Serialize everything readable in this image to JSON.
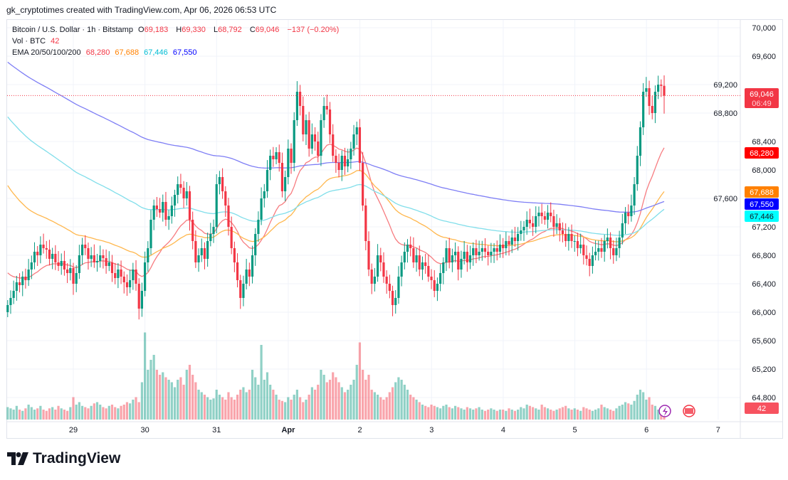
{
  "credit": "gk_cryptotimes created with TradingView.com, Apr 06, 2026 06:53 UTC",
  "legend": {
    "symbol": "Bitcoin / U.S. Dollar · 1h · Bitstamp",
    "o_label": "O",
    "o": "69,183",
    "h_label": "H",
    "h": "69,330",
    "l_label": "L",
    "l": "68,792",
    "c_label": "C",
    "c": "69,046",
    "change": "−137 (−0.20%)",
    "vol_label": "Vol · BTC",
    "vol": "42",
    "ema_label": "EMA 20/50/100/200",
    "ema20": "68,280",
    "ema50": "67,688",
    "ema100": "67,446",
    "ema200": "67,550"
  },
  "badges": {
    "price": "69,046",
    "countdown": "06:49",
    "ema20": "68,280",
    "ema50": "67,688",
    "ema200": "67,550",
    "ema100": "67,446",
    "volume": "42"
  },
  "colors": {
    "up": "#089981",
    "down": "#f23645",
    "ema20": "#ff0000",
    "ema50": "#ff8000",
    "ema100": "#00ffff",
    "ema200": "#0000ff"
  },
  "logo": "TradingView",
  "chart_data": {
    "type": "candlestick",
    "interval": "1h",
    "start": "Mar 28 02:00",
    "ylim": [
      64600,
      70100
    ],
    "y_ticks": [
      "70,000",
      "69,600",
      "69,200",
      "68,800",
      "68,400",
      "68,000",
      "67,600",
      "67,200",
      "66,800",
      "66,400",
      "66,000",
      "65,600",
      "65,200",
      "64,800"
    ],
    "x_ticks": [
      "29",
      "30",
      "31",
      "Apr",
      "2",
      "3",
      "4",
      "5",
      "6",
      "7"
    ],
    "last_candle": {
      "open": 69183,
      "high": 69330,
      "low": 68792,
      "close": 69046
    },
    "closes": [
      66100,
      66200,
      66300,
      66420,
      66380,
      66500,
      66450,
      66600,
      66700,
      66850,
      66800,
      66950,
      66900,
      66880,
      66750,
      66820,
      66700,
      66650,
      66720,
      66600,
      66550,
      66620,
      66400,
      66550,
      66800,
      66950,
      66900,
      66750,
      66800,
      66700,
      66720,
      66800,
      66760,
      66650,
      66700,
      66550,
      66480,
      66600,
      66500,
      66420,
      66350,
      66450,
      66600,
      66400,
      66050,
      66300,
      66700,
      66900,
      67300,
      67500,
      67450,
      67400,
      67550,
      67300,
      67350,
      67500,
      67650,
      67800,
      67750,
      67600,
      67700,
      67300,
      67000,
      66700,
      66800,
      66900,
      66750,
      67000,
      67100,
      67200,
      67800,
      67900,
      67700,
      67500,
      67200,
      66900,
      66700,
      66450,
      66200,
      66400,
      66600,
      66500,
      66800,
      67100,
      67300,
      67600,
      67700,
      68000,
      68200,
      68150,
      68250,
      68100,
      67700,
      67900,
      68300,
      68100,
      68700,
      69100,
      68900,
      68500,
      68700,
      68300,
      68500,
      68400,
      68200,
      68700,
      68900,
      68850,
      68500,
      68200,
      68100,
      68000,
      68200,
      68050,
      68150,
      68300,
      68500,
      68600,
      68100,
      67500,
      67000,
      66600,
      66400,
      66500,
      66800,
      66700,
      66500,
      66400,
      66300,
      66100,
      66200,
      66500,
      66700,
      66850,
      66950,
      66900,
      66700,
      66800,
      66600,
      66700,
      66650,
      66500,
      66450,
      66300,
      66400,
      66550,
      66700,
      66900,
      66700,
      66800,
      66850,
      66600,
      66750,
      66850,
      66700,
      66800,
      66900,
      66800,
      66850,
      66900,
      66850,
      66800,
      66850,
      66900,
      66850,
      66950,
      66900,
      67000,
      66950,
      67050,
      67000,
      67100,
      67150,
      67200,
      67300,
      67250,
      67200,
      67350,
      67400,
      67350,
      67300,
      67400,
      67350,
      67200,
      67250,
      67150,
      67100,
      67000,
      67100,
      67000,
      67000,
      66900,
      66950,
      66800,
      66750,
      66650,
      66800,
      66850,
      66900,
      66850,
      67000,
      67050,
      66900,
      66800,
      66900,
      67050,
      67250,
      67400,
      67350,
      67500,
      67800,
      68200,
      68600,
      69100,
      69150,
      68900,
      68800,
      69100,
      69200,
      69183,
      69046
    ],
    "volumes": [
      50,
      45,
      40,
      55,
      40,
      35,
      45,
      60,
      50,
      40,
      45,
      55,
      40,
      35,
      45,
      50,
      40,
      55,
      45,
      40,
      35,
      50,
      90,
      60,
      70,
      55,
      50,
      45,
      55,
      65,
      70,
      60,
      50,
      45,
      55,
      60,
      50,
      45,
      55,
      60,
      70,
      65,
      80,
      90,
      70,
      150,
      350,
      200,
      240,
      260,
      200,
      180,
      190,
      170,
      160,
      150,
      130,
      160,
      170,
      140,
      200,
      220,
      180,
      150,
      120,
      110,
      100,
      90,
      80,
      85,
      120,
      100,
      90,
      80,
      110,
      90,
      80,
      100,
      120,
      130,
      110,
      120,
      200,
      170,
      140,
      300,
      160,
      190,
      140,
      120,
      100,
      80,
      75,
      70,
      90,
      80,
      100,
      120,
      90,
      70,
      80,
      100,
      130,
      120,
      140,
      200,
      180,
      150,
      160,
      190,
      170,
      150,
      130,
      110,
      120,
      140,
      160,
      220,
      310,
      200,
      160,
      180,
      120,
      110,
      100,
      90,
      80,
      90,
      110,
      130,
      150,
      170,
      160,
      140,
      120,
      100,
      90,
      80,
      70,
      60,
      55,
      50,
      60,
      55,
      50,
      45,
      55,
      60,
      50,
      45,
      55,
      50,
      45,
      40,
      50,
      45,
      40,
      45,
      50,
      40,
      35,
      40,
      45,
      40,
      35,
      40,
      40,
      35,
      45,
      40,
      35,
      40,
      50,
      45,
      60,
      55,
      50,
      45,
      40,
      60,
      50,
      45,
      40,
      35,
      40,
      45,
      50,
      55,
      45,
      40,
      45,
      40,
      35,
      50,
      45,
      40,
      35,
      40,
      45,
      60,
      50,
      45,
      40,
      35,
      45,
      55,
      60,
      70,
      65,
      60,
      75,
      100,
      120,
      110,
      80,
      90,
      60,
      55,
      40,
      35,
      42
    ],
    "ema_periods": [
      20,
      50,
      100,
      200
    ],
    "ema_last": {
      "ema20": 68280,
      "ema50": 67688,
      "ema100": 67446,
      "ema200": 67550
    }
  }
}
